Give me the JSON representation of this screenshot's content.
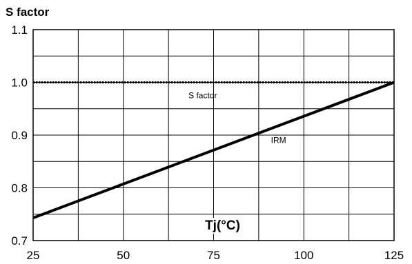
{
  "chart_data": {
    "type": "line",
    "ylabel": "S factor",
    "xlabel": "Tj(°C)",
    "xlim": [
      25,
      125
    ],
    "ylim": [
      0.7,
      1.1
    ],
    "x_ticks": [
      "25",
      "50",
      "75",
      "100",
      "125"
    ],
    "y_ticks": [
      "1.1",
      "1.0",
      "0.9",
      "0.8",
      "0.7"
    ],
    "x_ticks_values": [
      25,
      50,
      75,
      100,
      125
    ],
    "y_ticks_values": [
      1.1,
      1.0,
      0.9,
      0.8,
      0.7
    ],
    "x_grid": [
      25,
      37.5,
      50,
      62.5,
      75,
      87.5,
      100,
      112.5,
      125
    ],
    "y_grid": [
      0.7,
      0.75,
      0.8,
      0.85,
      0.9,
      0.95,
      1.0,
      1.05,
      1.1
    ],
    "grid": true,
    "series": [
      {
        "name": "S factor",
        "style": "dotted",
        "x": [
          25,
          125
        ],
        "y": [
          1.0,
          1.0
        ]
      },
      {
        "name": "IRM",
        "style": "solid",
        "x": [
          25,
          125
        ],
        "y": [
          0.743,
          1.0
        ]
      }
    ],
    "annotations": [
      {
        "text": "S factor",
        "x": 72,
        "y": 0.97
      },
      {
        "text": "IRM",
        "x": 93,
        "y": 0.885
      }
    ]
  }
}
